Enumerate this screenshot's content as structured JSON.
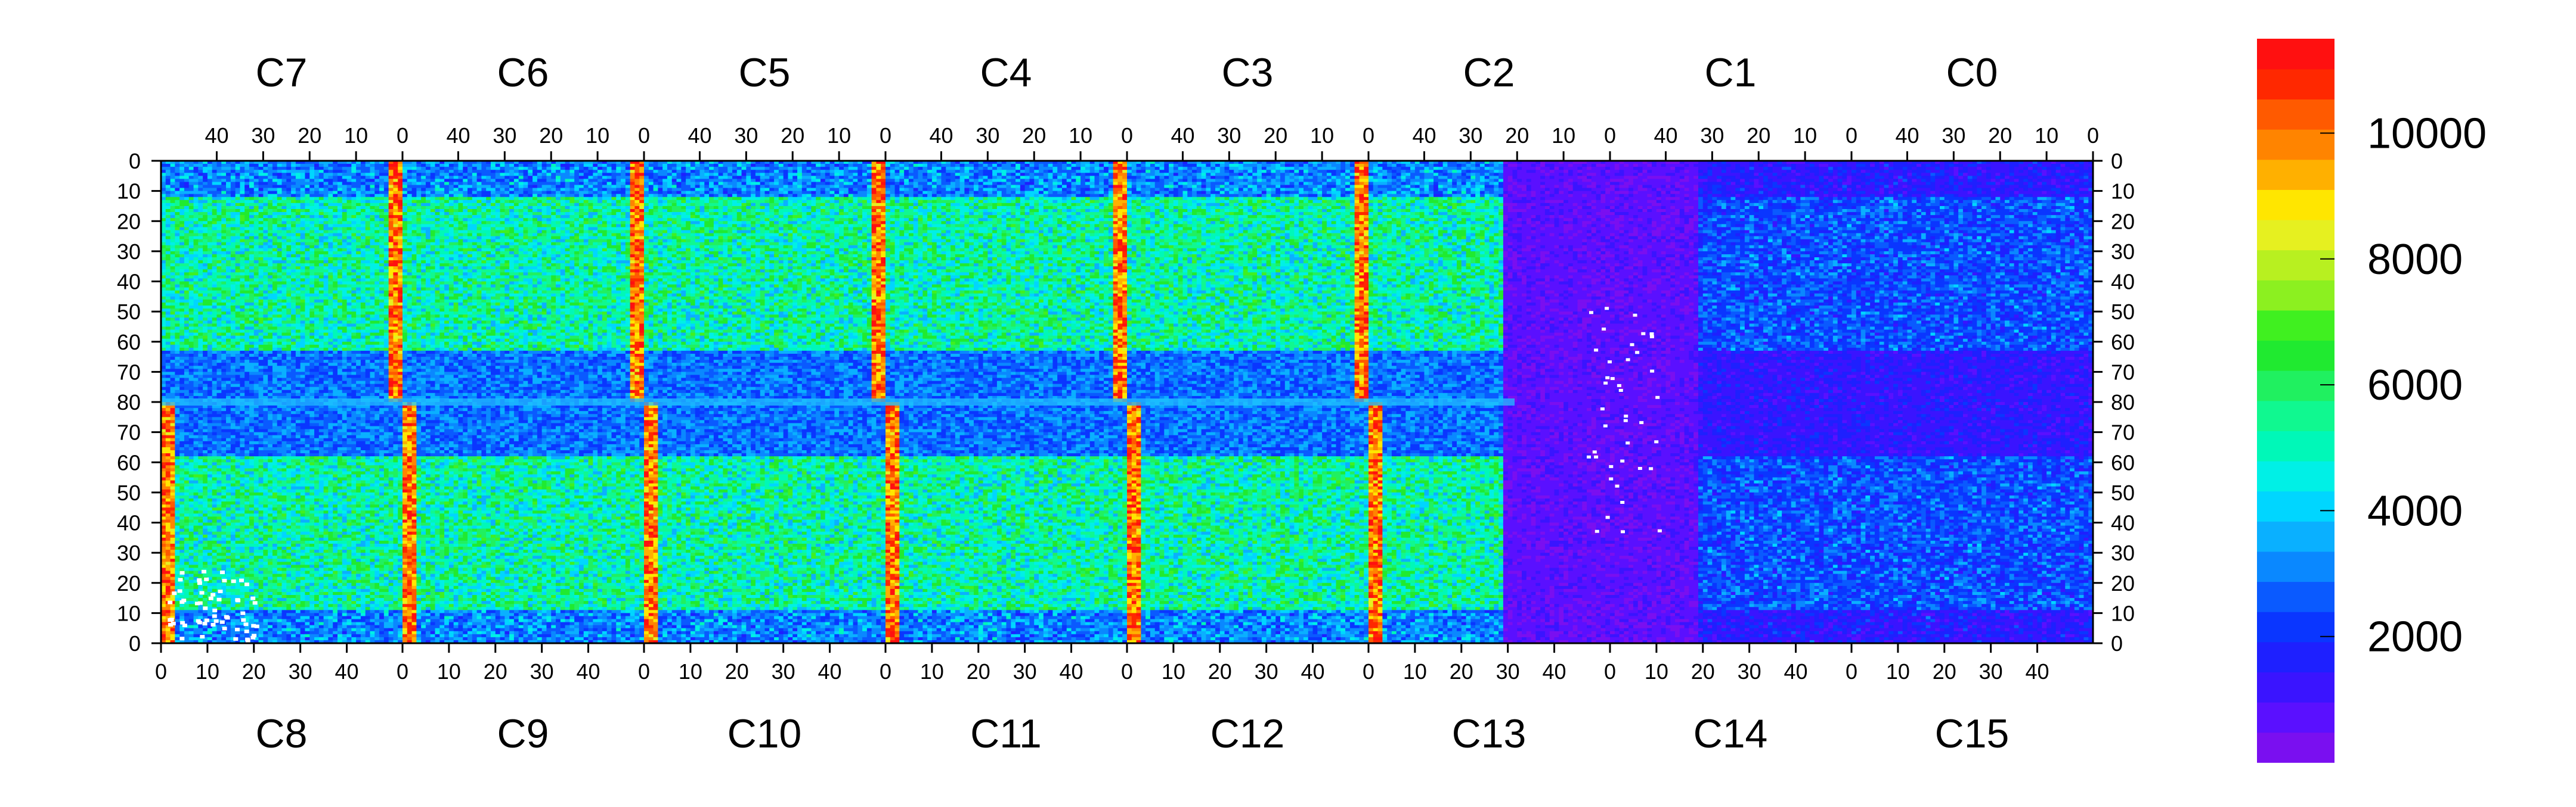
{
  "chart_data": {
    "type": "heatmap",
    "title": "",
    "xlabel": "",
    "ylabel": "",
    "top_row": {
      "chips": [
        "C7",
        "C6",
        "C5",
        "C4",
        "C3",
        "C2",
        "C1",
        "C0"
      ],
      "column_ticks": [
        "40",
        "30",
        "20",
        "10",
        "0"
      ],
      "row_ticks": [
        "0",
        "10",
        "20",
        "30",
        "40",
        "50",
        "60",
        "70",
        "80"
      ]
    },
    "bottom_row": {
      "chips": [
        "C8",
        "C9",
        "C10",
        "C11",
        "C12",
        "C13",
        "C14",
        "C15"
      ],
      "column_ticks": [
        "0",
        "10",
        "20",
        "30",
        "40"
      ],
      "row_ticks": [
        "70",
        "60",
        "50",
        "40",
        "30",
        "20",
        "10",
        "0"
      ]
    },
    "columns_per_chip": 52,
    "rows_per_half": 80,
    "colorbar": {
      "range": [
        0,
        11500
      ],
      "ticks": [
        "2000",
        "4000",
        "6000",
        "8000",
        "10000"
      ],
      "tick_values": [
        2000,
        4000,
        6000,
        8000,
        10000
      ],
      "colors": [
        "#7a0ff0",
        "#5a10ff",
        "#3a14ff",
        "#1e20ff",
        "#0a36ff",
        "#0a5aff",
        "#0a88ff",
        "#0ab0ff",
        "#00d6ff",
        "#00f0e6",
        "#00f8b8",
        "#10f890",
        "#20f060",
        "#20ea30",
        "#40f020",
        "#8cf020",
        "#b8f020",
        "#e6f020",
        "#ffe600",
        "#ffb000",
        "#ff8400",
        "#ff5a00",
        "#ff2800",
        "#ff1010"
      ]
    },
    "regions": {
      "low_occupancy_zone": "C13-C14 right half and C1-C0, C14-C15 (mostly near zero)",
      "hot_columns": "column 0 edges between chips (up to ~11000)",
      "typical_level": "4000-8000 in active sensor areas"
    }
  }
}
